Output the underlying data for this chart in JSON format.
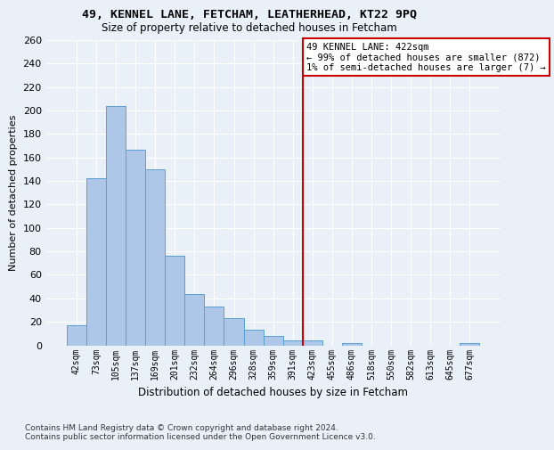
{
  "title1": "49, KENNEL LANE, FETCHAM, LEATHERHEAD, KT22 9PQ",
  "title2": "Size of property relative to detached houses in Fetcham",
  "xlabel": "Distribution of detached houses by size in Fetcham",
  "ylabel": "Number of detached properties",
  "footer": "Contains HM Land Registry data © Crown copyright and database right 2024.\nContains public sector information licensed under the Open Government Licence v3.0.",
  "bar_labels": [
    "42sqm",
    "73sqm",
    "105sqm",
    "137sqm",
    "169sqm",
    "201sqm",
    "232sqm",
    "264sqm",
    "296sqm",
    "328sqm",
    "359sqm",
    "391sqm",
    "423sqm",
    "455sqm",
    "486sqm",
    "518sqm",
    "550sqm",
    "582sqm",
    "613sqm",
    "645sqm",
    "677sqm"
  ],
  "bar_values": [
    17,
    142,
    204,
    167,
    150,
    76,
    44,
    33,
    23,
    13,
    8,
    4,
    4,
    0,
    2,
    0,
    0,
    0,
    0,
    0,
    2
  ],
  "bar_color": "#aec6e8",
  "bar_edge_color": "#5a9fd4",
  "bg_color": "#eaf0f8",
  "grid_color": "#ffffff",
  "red_line_bin": 12,
  "annotation_text": "49 KENNEL LANE: 422sqm\n← 99% of detached houses are smaller (872)\n1% of semi-detached houses are larger (7) →",
  "annotation_box_color": "#ffffff",
  "annotation_box_edge": "#cc0000",
  "red_line_color": "#cc0000",
  "ylim": [
    0,
    260
  ],
  "yticks": [
    0,
    20,
    40,
    60,
    80,
    100,
    120,
    140,
    160,
    180,
    200,
    220,
    240,
    260
  ]
}
